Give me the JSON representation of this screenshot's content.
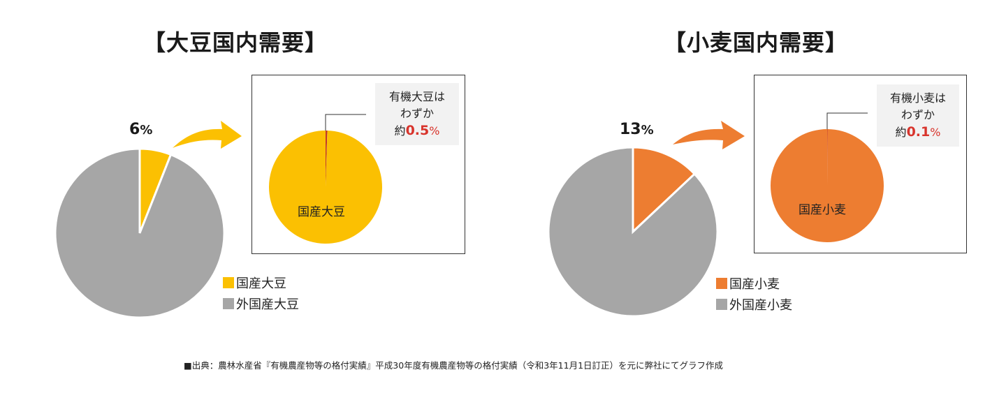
{
  "chart_data": [
    {
      "type": "pie",
      "title": "【大豆国内需要】",
      "slices": [
        {
          "label": "国産大豆",
          "value": 6,
          "color": "#fbc002"
        },
        {
          "label": "外国産大豆",
          "value": 94,
          "color": "#a6a6a6"
        }
      ],
      "slice_label": "6%",
      "legend": {
        "position": "right-bottom",
        "items": [
          "国産大豆",
          "外国産大豆"
        ]
      },
      "inset": {
        "type": "pie",
        "label": "国産大豆",
        "slices": [
          {
            "label": "有機大豆",
            "value": 0.5,
            "color": "#c0392b"
          },
          {
            "label": "国産大豆",
            "value": 99.5,
            "color": "#fbc002"
          }
        ],
        "callout": {
          "line1": "有機大豆は",
          "line2": "わずか",
          "prefix": "約",
          "value": "0.5",
          "unit": "%"
        }
      }
    },
    {
      "type": "pie",
      "title": "【小麦国内需要】",
      "slices": [
        {
          "label": "国産小麦",
          "value": 13,
          "color": "#ed7d31"
        },
        {
          "label": "外国産小麦",
          "value": 87,
          "color": "#a6a6a6"
        }
      ],
      "slice_label": "13%",
      "legend": {
        "position": "right-bottom",
        "items": [
          "国産小麦",
          "外国産小麦"
        ]
      },
      "inset": {
        "type": "pie",
        "label": "国産小麦",
        "slices": [
          {
            "label": "有機小麦",
            "value": 0.1,
            "color": "#c0392b"
          },
          {
            "label": "国産小麦",
            "value": 99.9,
            "color": "#ed7d31"
          }
        ],
        "callout": {
          "line1": "有機小麦は",
          "line2": "わずか",
          "prefix": "約",
          "value": "0.1",
          "unit": "%"
        }
      }
    }
  ],
  "left": {
    "title": "【大豆国内需要】",
    "pct_num": "6",
    "pct_unit": "%",
    "legend": [
      "国産大豆",
      "外国産大豆"
    ],
    "legend_colors": [
      "#fbc002",
      "#a6a6a6"
    ],
    "inset_label": "国産大豆",
    "callout": {
      "line1": "有機大豆は",
      "line2": "わずか",
      "prefix": "約",
      "value": "0.5",
      "unit": "%"
    },
    "arrow_color": "#fbc002"
  },
  "right": {
    "title": "【小麦国内需要】",
    "pct_num": "13",
    "pct_unit": "%",
    "legend": [
      "国産小麦",
      "外国産小麦"
    ],
    "legend_colors": [
      "#ed7d31",
      "#a6a6a6"
    ],
    "inset_label": "国産小麦",
    "callout": {
      "line1": "有機小麦は",
      "line2": "わずか",
      "prefix": "約",
      "value": "0.1",
      "unit": "%"
    },
    "arrow_color": "#ed7d31"
  },
  "source": "■出典：農林水産省『有機農産物等の格付実績』平成30年度有機農産物等の格付実績（令和3年11月1日訂正）を元に弊社にてグラフ作成"
}
